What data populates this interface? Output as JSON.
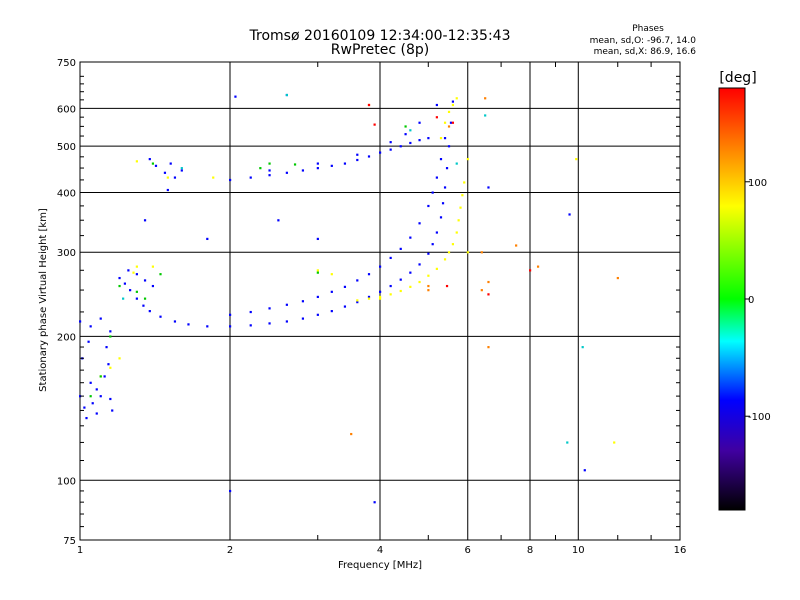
{
  "chart_data": {
    "type": "scatter",
    "title": "Tromsø 20160109 12:34:00-12:35:43",
    "subtitle": "RwPretec (8p)",
    "xlabel": "Frequency [MHz]",
    "ylabel": "Stationary phase Virtual Height [km]",
    "x_scale": "log",
    "y_scale": "log",
    "xlim": [
      1,
      16
    ],
    "ylim": [
      75,
      750
    ],
    "x_ticks": [
      1,
      2,
      4,
      6,
      8,
      10,
      16
    ],
    "y_ticks": [
      75,
      100,
      200,
      300,
      400,
      500,
      600,
      750
    ],
    "grid": true,
    "stats": {
      "heading": "Phases",
      "line_o": "mean, sd,O: -96.7, 14.0",
      "line_x": "mean, sd,X:  86.9, 16.6"
    },
    "colorbar": {
      "label": "[deg]",
      "range": [
        -180,
        180
      ],
      "ticks": [
        100,
        0,
        -100
      ],
      "colors": [
        "#ff0000",
        "#ff8000",
        "#ffff00",
        "#00ff00",
        "#00ffff",
        "#0000ff",
        "#4000a0",
        "#000000"
      ]
    },
    "series": [
      {
        "color": "#0000ff",
        "points": [
          [
            1.0,
            150
          ],
          [
            1.02,
            142
          ],
          [
            1.03,
            135
          ],
          [
            1.05,
            160
          ],
          [
            1.06,
            145
          ],
          [
            1.08,
            138
          ],
          [
            1.1,
            150
          ],
          [
            1.12,
            165
          ],
          [
            1.14,
            175
          ],
          [
            1.15,
            148
          ],
          [
            1.16,
            140
          ],
          [
            1.01,
            180
          ],
          [
            1.04,
            195
          ],
          [
            1.13,
            190
          ],
          [
            1.08,
            155
          ],
          [
            1.0,
            215
          ],
          [
            1.05,
            210
          ],
          [
            1.1,
            218
          ],
          [
            1.15,
            205
          ],
          [
            1.2,
            265
          ],
          [
            1.23,
            258
          ],
          [
            1.26,
            250
          ],
          [
            1.3,
            240
          ],
          [
            1.34,
            232
          ],
          [
            1.38,
            226
          ],
          [
            1.45,
            220
          ],
          [
            1.55,
            215
          ],
          [
            1.65,
            212
          ],
          [
            1.8,
            210
          ],
          [
            2.0,
            210
          ],
          [
            2.2,
            211
          ],
          [
            2.4,
            213
          ],
          [
            2.6,
            215
          ],
          [
            2.8,
            218
          ],
          [
            3.0,
            222
          ],
          [
            3.2,
            226
          ],
          [
            3.4,
            231
          ],
          [
            3.6,
            236
          ],
          [
            3.8,
            242
          ],
          [
            4.0,
            248
          ],
          [
            4.2,
            255
          ],
          [
            4.4,
            263
          ],
          [
            4.6,
            272
          ],
          [
            4.8,
            283
          ],
          [
            5.0,
            298
          ],
          [
            5.1,
            312
          ],
          [
            5.2,
            330
          ],
          [
            5.3,
            355
          ],
          [
            5.35,
            380
          ],
          [
            5.4,
            410
          ],
          [
            5.45,
            450
          ],
          [
            5.5,
            500
          ],
          [
            5.55,
            560
          ],
          [
            5.6,
            620
          ],
          [
            2.0,
            222
          ],
          [
            2.2,
            225
          ],
          [
            2.4,
            229
          ],
          [
            2.6,
            233
          ],
          [
            2.8,
            237
          ],
          [
            3.0,
            242
          ],
          [
            3.2,
            248
          ],
          [
            3.4,
            254
          ],
          [
            3.6,
            262
          ],
          [
            3.8,
            270
          ],
          [
            4.0,
            280
          ],
          [
            4.2,
            292
          ],
          [
            4.4,
            305
          ],
          [
            4.6,
            322
          ],
          [
            4.8,
            345
          ],
          [
            5.0,
            375
          ],
          [
            5.1,
            400
          ],
          [
            5.2,
            430
          ],
          [
            5.3,
            470
          ],
          [
            5.4,
            520
          ],
          [
            1.3,
            270
          ],
          [
            1.35,
            262
          ],
          [
            1.4,
            255
          ],
          [
            1.25,
            275
          ],
          [
            1.38,
            470
          ],
          [
            1.42,
            455
          ],
          [
            1.48,
            440
          ],
          [
            1.52,
            460
          ],
          [
            1.55,
            430
          ],
          [
            1.6,
            445
          ],
          [
            1.5,
            405
          ],
          [
            2.0,
            425
          ],
          [
            2.2,
            430
          ],
          [
            2.4,
            435
          ],
          [
            2.6,
            440
          ],
          [
            2.8,
            445
          ],
          [
            3.0,
            450
          ],
          [
            3.2,
            455
          ],
          [
            3.4,
            460
          ],
          [
            3.6,
            468
          ],
          [
            3.8,
            476
          ],
          [
            4.0,
            485
          ],
          [
            4.2,
            492
          ],
          [
            4.4,
            500
          ],
          [
            4.6,
            508
          ],
          [
            4.8,
            515
          ],
          [
            5.0,
            520
          ],
          [
            4.5,
            530
          ],
          [
            4.2,
            510
          ],
          [
            3.6,
            480
          ],
          [
            3.0,
            460
          ],
          [
            2.4,
            445
          ],
          [
            4.8,
            560
          ],
          [
            5.2,
            610
          ],
          [
            2.05,
            635
          ],
          [
            2.6,
            640
          ],
          [
            1.8,
            320
          ],
          [
            1.35,
            350
          ],
          [
            2.5,
            350
          ],
          [
            3.0,
            320
          ],
          [
            6.6,
            410
          ],
          [
            9.6,
            360
          ],
          [
            10.3,
            105
          ],
          [
            3.9,
            90
          ],
          [
            2.0,
            95
          ]
        ]
      },
      {
        "color": "#ffff00",
        "points": [
          [
            3.6,
            238
          ],
          [
            3.8,
            240
          ],
          [
            4.0,
            242
          ],
          [
            4.2,
            245
          ],
          [
            4.4,
            249
          ],
          [
            4.6,
            254
          ],
          [
            4.8,
            260
          ],
          [
            5.0,
            268
          ],
          [
            5.2,
            277
          ],
          [
            5.4,
            290
          ],
          [
            5.5,
            300
          ],
          [
            5.6,
            312
          ],
          [
            5.7,
            330
          ],
          [
            5.75,
            350
          ],
          [
            5.8,
            372
          ],
          [
            5.85,
            395
          ],
          [
            5.9,
            420
          ],
          [
            5.3,
            520
          ],
          [
            5.4,
            560
          ],
          [
            5.5,
            590
          ],
          [
            5.6,
            610
          ],
          [
            5.7,
            630
          ],
          [
            1.2,
            180
          ],
          [
            1.15,
            172
          ],
          [
            1.1,
            165
          ],
          [
            1.3,
            280
          ],
          [
            1.28,
            272
          ],
          [
            1.4,
            280
          ],
          [
            1.3,
            465
          ],
          [
            1.5,
            430
          ],
          [
            3.0,
            275
          ],
          [
            3.2,
            270
          ],
          [
            4.0,
            240
          ],
          [
            6.0,
            470
          ],
          [
            6.0,
            300
          ],
          [
            9.9,
            470
          ],
          [
            11.8,
            120
          ],
          [
            1.85,
            430
          ]
        ]
      },
      {
        "color": "#00c800",
        "points": [
          [
            1.2,
            255
          ],
          [
            1.3,
            248
          ],
          [
            1.35,
            240
          ],
          [
            1.15,
            200
          ],
          [
            1.1,
            165
          ],
          [
            1.45,
            270
          ],
          [
            2.4,
            460
          ],
          [
            2.7,
            458
          ],
          [
            3.0,
            272
          ],
          [
            1.05,
            150
          ],
          [
            4.5,
            550
          ],
          [
            1.4,
            460
          ],
          [
            2.3,
            450
          ]
        ]
      },
      {
        "color": "#00c8c8",
        "points": [
          [
            2.6,
            640
          ],
          [
            4.6,
            540
          ],
          [
            5.7,
            460
          ],
          [
            1.6,
            450
          ],
          [
            6.5,
            580
          ],
          [
            9.5,
            120
          ],
          [
            10.2,
            190
          ],
          [
            1.22,
            240
          ]
        ]
      },
      {
        "color": "#ff8000",
        "points": [
          [
            5.0,
            255
          ],
          [
            6.4,
            300
          ],
          [
            6.6,
            260
          ],
          [
            6.5,
            630
          ],
          [
            8.3,
            280
          ],
          [
            6.6,
            190
          ],
          [
            3.5,
            125
          ],
          [
            7.5,
            310
          ],
          [
            12.0,
            265
          ],
          [
            5.5,
            550
          ],
          [
            6.4,
            250
          ],
          [
            5.0,
            250
          ],
          [
            3.8,
            610
          ]
        ]
      },
      {
        "color": "#ff0000",
        "points": [
          [
            3.8,
            610
          ],
          [
            3.9,
            555
          ],
          [
            6.6,
            245
          ],
          [
            8.0,
            275
          ],
          [
            5.6,
            560
          ],
          [
            5.2,
            575
          ],
          [
            5.45,
            255
          ]
        ]
      }
    ]
  }
}
